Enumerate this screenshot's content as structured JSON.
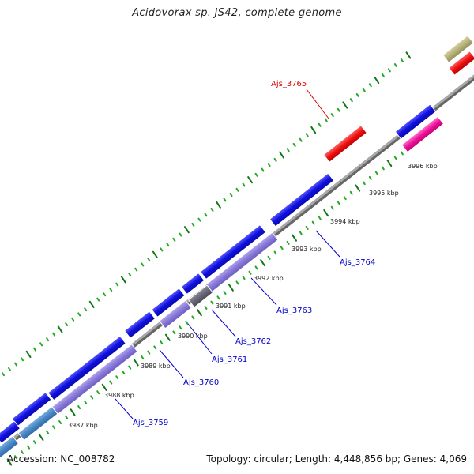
{
  "title": "Acidovorax sp. JS42, complete genome",
  "footer": {
    "accession": "Accession: NC_008782",
    "info": "Topology: circular; Length: 4,448,856 bp; Genes: 4,069"
  },
  "colors": {
    "cds_blue": "#1010e0",
    "cds_lavender": "#8878d8",
    "cds_gray": "#666677",
    "cds_steel": "#4a86c4",
    "cds_red": "#ee1111",
    "cds_pink": "#ee1199",
    "cds_olive": "#b7b27a",
    "backbone": "#888888",
    "tick_minor": "#22aa22",
    "tick_major": "#117711",
    "label_blue": "#0000cc",
    "label_red": "#dd0000"
  },
  "scale_labels": [
    "3987 kbp",
    "3988 kbp",
    "3989 kbp",
    "3990 kbp",
    "3991 kbp",
    "3992 kbp",
    "3993 kbp",
    "3994 kbp",
    "3995 kbp",
    "3996 kbp"
  ],
  "genes": [
    {
      "label": "Ajs_3759",
      "strand": "forward"
    },
    {
      "label": "Ajs_3760",
      "strand": "forward"
    },
    {
      "label": "Ajs_3761",
      "strand": "forward"
    },
    {
      "label": "Ajs_3762",
      "strand": "forward"
    },
    {
      "label": "Ajs_3763",
      "strand": "forward"
    },
    {
      "label": "Ajs_3764",
      "strand": "forward"
    },
    {
      "label": "Ajs_3765",
      "strand": "reverse"
    }
  ]
}
